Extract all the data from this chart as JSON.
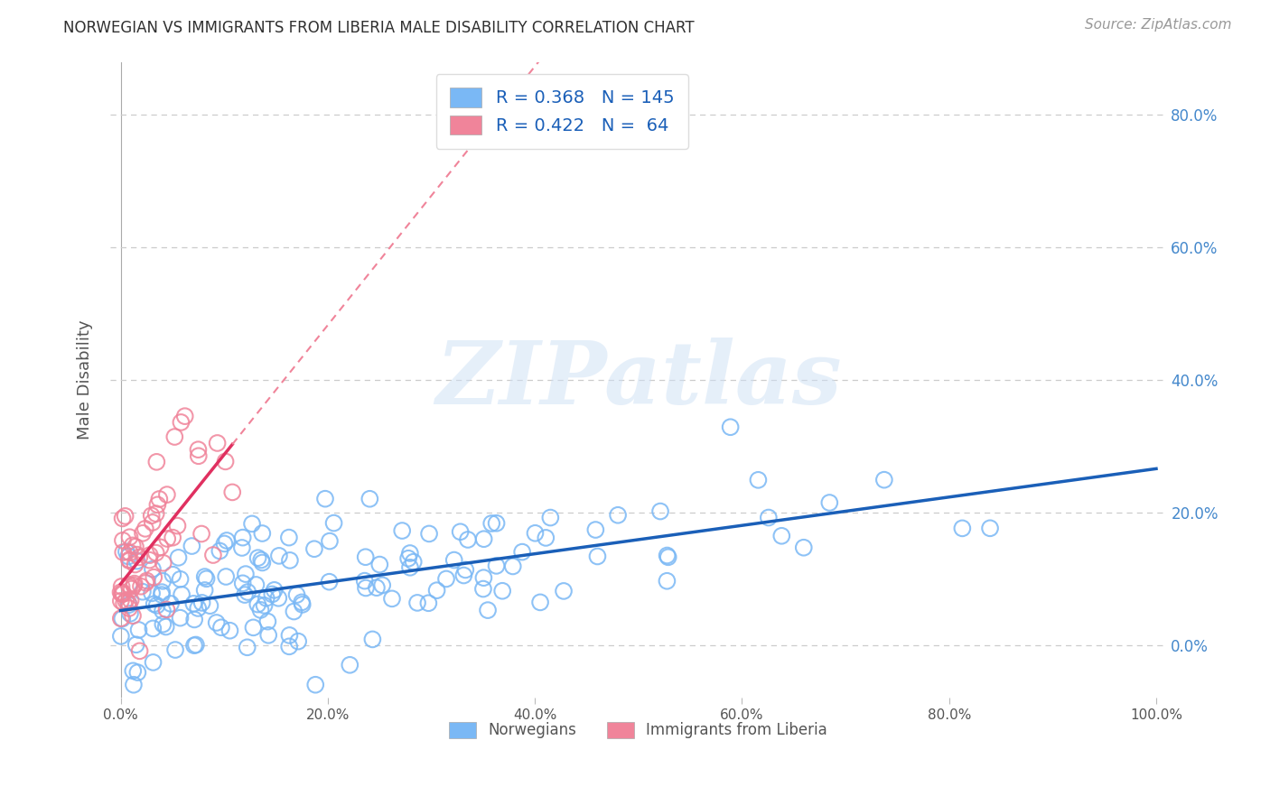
{
  "title": "NORWEGIAN VS IMMIGRANTS FROM LIBERIA MALE DISABILITY CORRELATION CHART",
  "source": "Source: ZipAtlas.com",
  "ylabel": "Male Disability",
  "xlim": [
    -0.01,
    1.01
  ],
  "ylim": [
    -0.08,
    0.88
  ],
  "xticks": [
    0.0,
    0.2,
    0.4,
    0.6,
    0.8,
    1.0
  ],
  "yticks": [
    0.0,
    0.2,
    0.4,
    0.6,
    0.8
  ],
  "ytick_labels": [
    "0.0%",
    "20.0%",
    "40.0%",
    "60.0%",
    "80.0%"
  ],
  "xtick_labels": [
    "0.0%",
    "20.0%",
    "40.0%",
    "60.0%",
    "80.0%",
    "100.0%"
  ],
  "norwegians_R": 0.368,
  "norwegians_N": 145,
  "liberia_R": 0.422,
  "liberia_N": 64,
  "norwegians_color": "#7ab8f5",
  "liberia_color": "#f0849a",
  "norwegians_line_color": "#1a5fb8",
  "liberia_line_color": "#e03060",
  "legend_label_norwegians": "Norwegians",
  "legend_label_liberia": "Immigrants from Liberia",
  "watermark_text": "ZIPatlas",
  "background_color": "#ffffff",
  "grid_color": "#cccccc",
  "title_color": "#303030",
  "axis_label_color": "#555555",
  "tick_color": "#555555",
  "source_color": "#999999",
  "legend_text_color": "#1a5fb8",
  "right_tick_color": "#4488cc"
}
